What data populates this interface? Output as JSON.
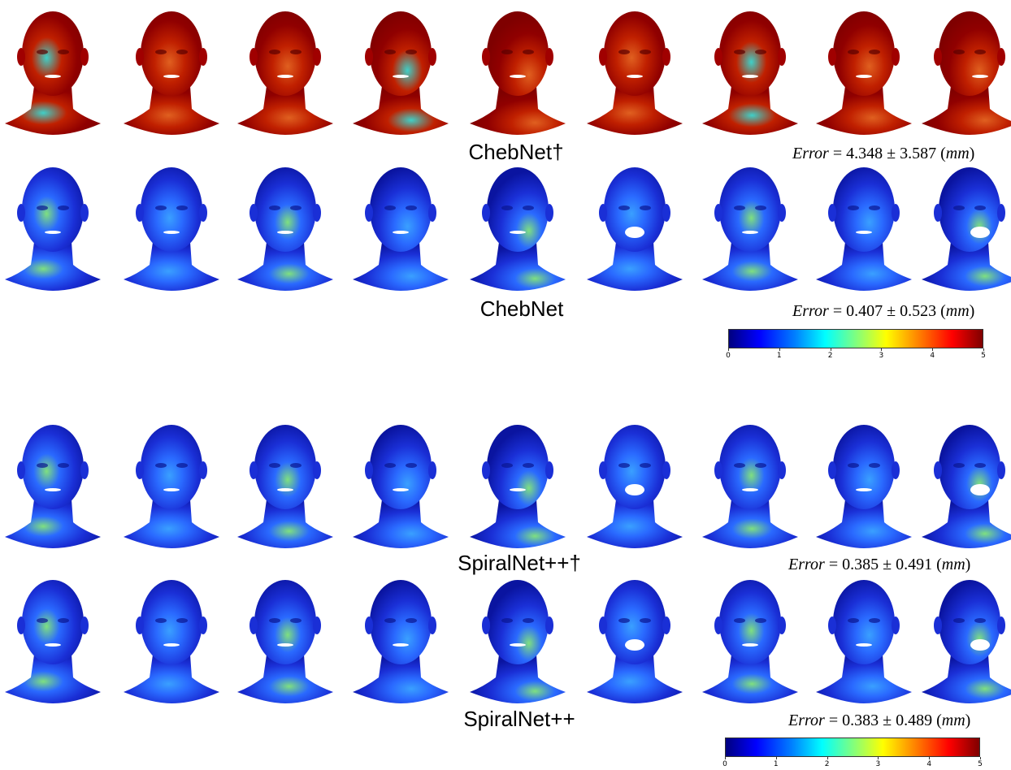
{
  "sections": [
    {
      "label": "ChebNet†",
      "error_prefix": "Error",
      "error_value": "= 4.348 ± 3.587 (",
      "error_unit": "mm",
      "error_suffix": ")",
      "palette": "warm"
    },
    {
      "label": "ChebNet",
      "error_prefix": "Error",
      "error_value": "= 0.407 ± 0.523 (",
      "error_unit": "mm",
      "error_suffix": ")",
      "palette": "cool"
    },
    {
      "label": "SpiralNet++†",
      "error_prefix": "Error",
      "error_value": "= 0.385 ± 0.491 (",
      "error_unit": "mm",
      "error_suffix": ")",
      "palette": "cool"
    },
    {
      "label": "SpiralNet++",
      "error_prefix": "Error",
      "error_value": "= 0.383 ± 0.489 (",
      "error_unit": "mm",
      "error_suffix": ")",
      "palette": "cool"
    }
  ],
  "colorbar": {
    "ticks": [
      "0",
      "1",
      "2",
      "3",
      "4",
      "5"
    ],
    "colors": [
      "#00007f",
      "#0000ff",
      "#007fff",
      "#00ffff",
      "#7fff7f",
      "#ffff00",
      "#ff7f00",
      "#ff0000",
      "#7f0000"
    ]
  },
  "heads_per_row": 9,
  "colors": {
    "warm_base": "#8b0000",
    "cool_base": "#1a2fd6"
  }
}
